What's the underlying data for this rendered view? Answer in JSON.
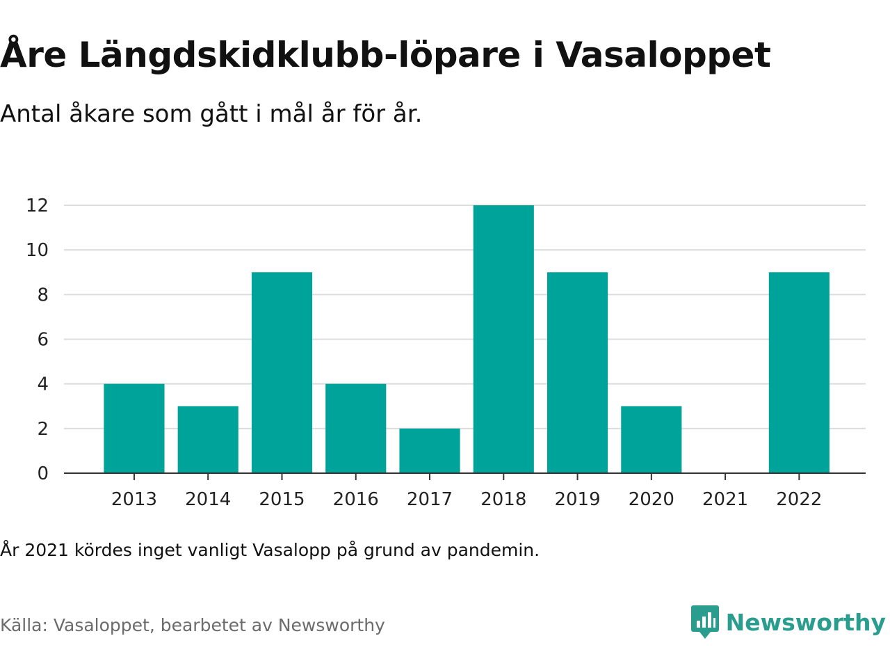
{
  "header": {
    "title": "Åre Längdskidklubb-löpare i Vasaloppet",
    "subtitle": "Antal åkare som gått i mål år för år."
  },
  "footer": {
    "note": "År 2021 kördes inget vanligt Vasalopp på grund av pandemin.",
    "source": "Källa: Vasaloppet, bearbetet av Newsworthy",
    "brand": "Newsworthy",
    "brand_icon": "newsworthy-logo-icon",
    "brand_color": "#2a9d8f"
  },
  "chart_data": {
    "type": "bar",
    "title": "Åre Längdskidklubb-löpare i Vasaloppet",
    "subtitle": "Antal åkare som gått i mål år för år.",
    "categories": [
      "2013",
      "2014",
      "2015",
      "2016",
      "2017",
      "2018",
      "2019",
      "2020",
      "2021",
      "2022"
    ],
    "values": [
      4,
      3,
      9,
      4,
      2,
      12,
      9,
      3,
      0,
      9
    ],
    "ylim": [
      0,
      12
    ],
    "yticks": [
      0,
      2,
      4,
      6,
      8,
      10,
      12
    ],
    "grid": true,
    "bar_color": "#00a39a",
    "xlabel": "",
    "ylabel": ""
  }
}
